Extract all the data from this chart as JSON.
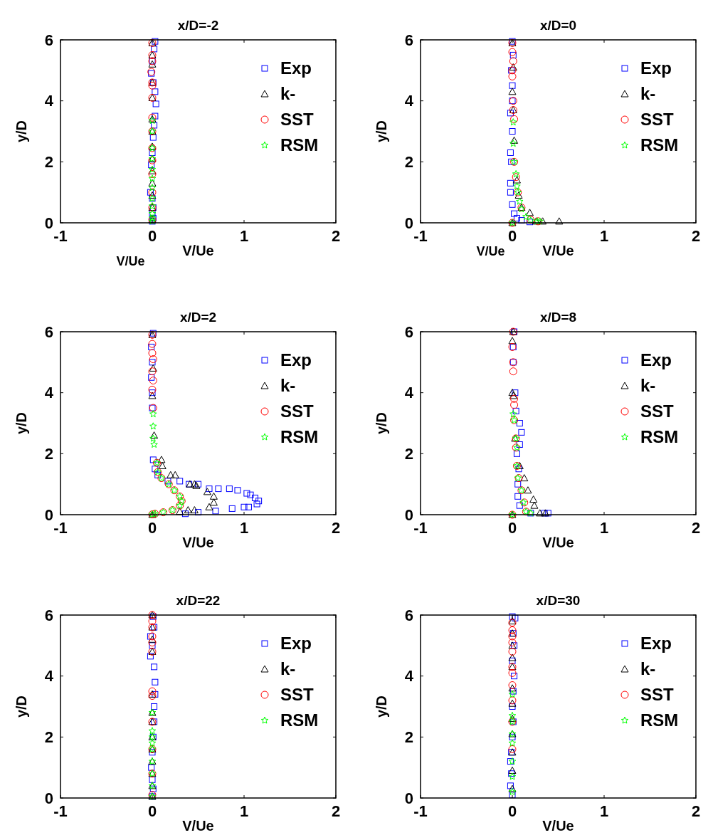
{
  "chart_data": [
    {
      "type": "scatter",
      "title": "x/D=-2",
      "xlabel": "V/Ue",
      "ylabel": "y/D",
      "annotations": [
        "V/Ue"
      ],
      "xlim": [
        -1,
        2
      ],
      "xticks": [
        -1,
        0,
        1,
        2
      ],
      "ylim": [
        0,
        6
      ],
      "yticks": [
        0,
        2,
        4,
        6
      ],
      "legend": "top right",
      "grid": false,
      "series": [
        {
          "name": "Exp",
          "color": "#0000ff",
          "marker": "square",
          "x": [
            0.03,
            0.02,
            0.0,
            -0.01,
            0.01,
            0.03,
            0.04,
            0.03,
            0.02,
            0.01,
            0.0,
            -0.01,
            -0.02,
            0.0,
            0.01,
            0.0,
            0.01,
            0.0
          ],
          "values": [
            5.95,
            5.7,
            5.3,
            4.9,
            4.6,
            4.3,
            3.9,
            3.5,
            3.2,
            2.8,
            2.3,
            1.9,
            1.0,
            0.8,
            0.5,
            0.3,
            0.15,
            0.05
          ]
        },
        {
          "name": "k-",
          "color": "#000000",
          "marker": "triangle",
          "x": [
            0.0,
            0.0,
            0.0,
            0.0,
            0.0,
            0.0,
            0.0,
            0.0,
            0.0,
            0.0,
            0.0,
            0.0,
            0.0,
            0.0
          ],
          "values": [
            5.9,
            5.5,
            5.2,
            4.6,
            4.1,
            3.4,
            3.0,
            2.5,
            2.1,
            1.7,
            1.3,
            0.9,
            0.5,
            0.1
          ]
        },
        {
          "name": "SST",
          "color": "#ff0000",
          "marker": "circle",
          "x": [
            0.0,
            0.0,
            0.0,
            -0.01,
            0.0,
            0.0,
            0.0,
            0.0,
            0.0,
            0.0,
            0.0,
            0.0,
            0.0,
            0.0,
            0.0
          ],
          "values": [
            5.9,
            5.5,
            5.3,
            4.95,
            4.6,
            4.5,
            4.1,
            3.45,
            3.0,
            2.45,
            2.05,
            1.6,
            1.0,
            0.5,
            0.1
          ]
        },
        {
          "name": "RSM",
          "color": "#00ff00",
          "marker": "star",
          "x": [
            0.0,
            0.0,
            0.0,
            0.0,
            0.0,
            0.0,
            0.0,
            0.0,
            0.0,
            0.0,
            0.0,
            0.0
          ],
          "values": [
            3.35,
            3.0,
            2.45,
            2.1,
            1.75,
            1.45,
            1.15,
            0.8,
            0.55,
            0.3,
            0.15,
            0.05
          ]
        }
      ]
    },
    {
      "type": "scatter",
      "title": "x/D=0",
      "xlabel": "V/Ue",
      "ylabel": "y/D",
      "annotations": [
        "V/Ue"
      ],
      "xlim": [
        -1,
        2
      ],
      "xticks": [
        -1,
        0,
        1,
        2
      ],
      "ylim": [
        0,
        6
      ],
      "yticks": [
        0,
        2,
        4,
        6
      ],
      "legend": "top right",
      "grid": false,
      "series": [
        {
          "name": "Exp",
          "color": "#0000ff",
          "marker": "square",
          "x": [
            0.0,
            0.01,
            -0.01,
            0.0,
            0.0,
            -0.02,
            0.0,
            -0.02,
            -0.01,
            -0.02,
            -0.02,
            0.0,
            0.02,
            0.05,
            0.1,
            0.19
          ],
          "values": [
            5.95,
            5.5,
            5.0,
            4.5,
            4.0,
            3.6,
            3.0,
            2.3,
            2.0,
            1.3,
            1.0,
            0.6,
            0.3,
            0.15,
            0.08,
            0.03
          ]
        },
        {
          "name": "k-",
          "color": "#000000",
          "marker": "triangle",
          "x": [
            0.0,
            0.01,
            0.0,
            0.01,
            0.02,
            0.05,
            0.07,
            0.1,
            0.19,
            0.26,
            0.33,
            0.51,
            0.0
          ],
          "values": [
            5.9,
            5.1,
            4.3,
            3.7,
            2.7,
            1.4,
            0.9,
            0.5,
            0.33,
            0.05,
            0.05,
            0.05,
            0.0
          ]
        },
        {
          "name": "SST",
          "color": "#ff0000",
          "marker": "circle",
          "x": [
            0.0,
            0.0,
            0.01,
            0.0,
            0.0,
            0.01,
            0.01,
            0.02,
            0.02,
            0.04,
            0.06,
            0.1,
            0.2,
            0.28,
            0.0
          ],
          "values": [
            5.9,
            5.6,
            5.3,
            5.0,
            4.8,
            4.0,
            3.7,
            3.4,
            2.0,
            1.5,
            1.0,
            0.5,
            0.1,
            0.05,
            0.0
          ]
        },
        {
          "name": "RSM",
          "color": "#00ff00",
          "marker": "star",
          "x": [
            0.01,
            0.01,
            0.02,
            0.04,
            0.05,
            0.06,
            0.08,
            0.1,
            0.15,
            0.2,
            0.27,
            0.3,
            0.0
          ],
          "values": [
            3.3,
            2.6,
            2.0,
            1.6,
            1.2,
            1.0,
            0.7,
            0.45,
            0.2,
            0.08,
            0.05,
            0.05,
            0.0
          ]
        }
      ]
    },
    {
      "type": "scatter",
      "title": "x/D=2",
      "xlabel": "V/Ue",
      "ylabel": "y/D",
      "xlim": [
        -1,
        2
      ],
      "xticks": [
        -1,
        0,
        1,
        2
      ],
      "ylim": [
        0,
        6
      ],
      "yticks": [
        0,
        2,
        4,
        6
      ],
      "legend": "top right",
      "grid": false,
      "series": [
        {
          "name": "Exp",
          "color": "#0000ff",
          "marker": "square",
          "x": [
            0.01,
            -0.01,
            0.0,
            -0.01,
            0.0,
            0.0,
            0.01,
            0.03,
            0.06,
            0.17,
            0.3,
            0.4,
            0.5,
            0.62,
            0.72,
            0.84,
            0.93,
            1.03,
            1.07,
            1.12,
            1.16,
            1.14,
            1.05,
            1.0,
            0.87,
            0.69,
            0.5,
            0.36
          ],
          "values": [
            5.95,
            5.5,
            5.0,
            4.5,
            4.0,
            3.5,
            1.8,
            1.5,
            1.3,
            1.1,
            1.1,
            1.0,
            1.0,
            0.85,
            0.85,
            0.85,
            0.8,
            0.7,
            0.65,
            0.55,
            0.45,
            0.35,
            0.25,
            0.25,
            0.2,
            0.12,
            0.08,
            0.03
          ]
        },
        {
          "name": "k-",
          "color": "#000000",
          "marker": "triangle",
          "x": [
            0.0,
            0.01,
            0.0,
            0.02,
            0.1,
            0.11,
            0.2,
            0.25,
            0.41,
            0.46,
            0.48,
            0.6,
            0.67,
            0.67,
            0.62,
            0.46,
            0.39,
            0.3,
            0.0
          ],
          "values": [
            5.9,
            4.8,
            3.9,
            2.6,
            1.8,
            1.6,
            1.3,
            1.3,
            1.0,
            1.0,
            0.95,
            0.75,
            0.6,
            0.4,
            0.25,
            0.15,
            0.15,
            0.1,
            0.0
          ]
        },
        {
          "name": "SST",
          "color": "#ff0000",
          "marker": "circle",
          "x": [
            0.0,
            0.0,
            0.0,
            0.01,
            0.0,
            0.01,
            0.0,
            0.01,
            0.05,
            0.06,
            0.1,
            0.18,
            0.24,
            0.3,
            0.32,
            0.3,
            0.22,
            0.12,
            0.03,
            0.0
          ],
          "values": [
            5.9,
            5.6,
            5.3,
            5.1,
            4.7,
            4.4,
            4.1,
            3.5,
            1.7,
            1.4,
            1.2,
            1.0,
            0.8,
            0.6,
            0.45,
            0.3,
            0.15,
            0.08,
            0.03,
            0.01
          ]
        },
        {
          "name": "RSM",
          "color": "#00ff00",
          "marker": "star",
          "x": [
            0.01,
            0.01,
            0.01,
            0.02,
            0.05,
            0.06,
            0.1,
            0.18,
            0.24,
            0.3,
            0.32,
            0.3,
            0.22,
            0.12,
            0.03,
            0.0
          ],
          "values": [
            3.3,
            2.9,
            2.5,
            2.3,
            1.7,
            1.4,
            1.2,
            1.0,
            0.8,
            0.6,
            0.45,
            0.3,
            0.15,
            0.08,
            0.03,
            0.01
          ]
        }
      ]
    },
    {
      "type": "scatter",
      "title": "x/D=8",
      "xlabel": "V/Ue",
      "ylabel": "y/D",
      "xlim": [
        -1,
        2
      ],
      "xticks": [
        -1,
        0,
        1,
        2
      ],
      "ylim": [
        0,
        6
      ],
      "yticks": [
        0,
        2,
        4,
        6
      ],
      "legend": "top right",
      "grid": false,
      "series": [
        {
          "name": "Exp",
          "color": "#0000ff",
          "marker": "square",
          "x": [
            0.02,
            0.01,
            0.01,
            0.03,
            0.04,
            0.08,
            0.1,
            0.08,
            0.05,
            0.07,
            0.06,
            0.06,
            0.08,
            0.2,
            0.35,
            0.39
          ],
          "values": [
            6.0,
            5.5,
            5.0,
            4.0,
            3.4,
            3.0,
            2.7,
            2.3,
            2.0,
            1.5,
            1.0,
            0.6,
            0.3,
            0.05,
            0.05,
            0.05
          ]
        },
        {
          "name": "k-",
          "color": "#000000",
          "marker": "triangle",
          "x": [
            0.01,
            0.0,
            0.0,
            0.01,
            0.03,
            0.08,
            0.13,
            0.17,
            0.23,
            0.24,
            0.3,
            0.36,
            0.0
          ],
          "values": [
            6.0,
            5.7,
            4.0,
            3.9,
            2.5,
            1.6,
            1.2,
            0.8,
            0.5,
            0.3,
            0.05,
            0.05,
            0.0
          ]
        },
        {
          "name": "SST",
          "color": "#ff0000",
          "marker": "circle",
          "x": [
            0.01,
            0.0,
            0.01,
            0.01,
            0.02,
            0.02,
            0.02,
            0.04,
            0.04,
            0.05,
            0.07,
            0.1,
            0.13,
            0.15,
            0.0
          ],
          "values": [
            6.0,
            5.5,
            5.0,
            4.7,
            3.8,
            3.6,
            3.1,
            2.5,
            2.2,
            1.6,
            1.2,
            0.8,
            0.4,
            0.1,
            0.0
          ]
        },
        {
          "name": "RSM",
          "color": "#00ff00",
          "marker": "star",
          "x": [
            0.01,
            0.02,
            0.04,
            0.05,
            0.05,
            0.06,
            0.1,
            0.12,
            0.15,
            0.2,
            0.0
          ],
          "values": [
            3.3,
            3.1,
            2.5,
            2.2,
            1.6,
            1.2,
            0.8,
            0.4,
            0.1,
            0.05,
            0.0
          ]
        }
      ]
    },
    {
      "type": "scatter",
      "title": "x/D=22",
      "xlabel": "V/Ue",
      "ylabel": "y/D",
      "xlim": [
        -1,
        2
      ],
      "xticks": [
        -1,
        0,
        1,
        2
      ],
      "ylim": [
        0,
        6
      ],
      "yticks": [
        0,
        2,
        4,
        6
      ],
      "legend": "top right",
      "grid": false,
      "series": [
        {
          "name": "Exp",
          "color": "#0000ff",
          "marker": "square",
          "x": [
            0.01,
            0.02,
            -0.02,
            0.0,
            -0.02,
            0.02,
            0.03,
            0.03,
            0.02,
            0.02,
            0.01,
            0.0,
            -0.01,
            0.0,
            0.01,
            0.0
          ],
          "values": [
            5.95,
            5.6,
            5.3,
            5.0,
            4.65,
            4.3,
            3.8,
            3.4,
            3.0,
            2.5,
            2.0,
            1.5,
            1.0,
            0.6,
            0.3,
            0.05
          ]
        },
        {
          "name": "k-",
          "color": "#000000",
          "marker": "triangle",
          "x": [
            0.0,
            0.0,
            0.0,
            0.0,
            0.0,
            0.0,
            0.0,
            0.0,
            0.0,
            0.0,
            0.0,
            0.0,
            0.0
          ],
          "values": [
            6.0,
            5.6,
            5.2,
            4.8,
            3.4,
            2.8,
            2.5,
            2.0,
            1.6,
            1.2,
            0.8,
            0.4,
            0.05
          ]
        },
        {
          "name": "SST",
          "color": "#ff0000",
          "marker": "circle",
          "x": [
            0.0,
            0.0,
            0.0,
            0.0,
            0.0,
            0.0,
            0.0,
            0.0,
            0.0,
            0.0,
            0.0,
            0.0
          ],
          "values": [
            6.0,
            5.8,
            5.6,
            5.3,
            5.1,
            4.8,
            3.5,
            3.35,
            2.5,
            1.6,
            0.8,
            0.1
          ]
        },
        {
          "name": "RSM",
          "color": "#00ff00",
          "marker": "star",
          "x": [
            0.0,
            0.0,
            0.0,
            0.0,
            0.0,
            0.0,
            0.0,
            0.0,
            0.0
          ],
          "values": [
            2.8,
            2.2,
            2.0,
            1.8,
            1.6,
            1.2,
            0.8,
            0.4,
            0.05
          ]
        }
      ]
    },
    {
      "type": "scatter",
      "title": "x/D=30",
      "xlabel": "V/Ue",
      "ylabel": "y/D",
      "xlim": [
        -1,
        2
      ],
      "xticks": [
        -1,
        0,
        1,
        2
      ],
      "ylim": [
        0,
        6
      ],
      "yticks": [
        0,
        2,
        4,
        6
      ],
      "legend": "top right",
      "grid": false,
      "series": [
        {
          "name": "Exp",
          "color": "#0000ff",
          "marker": "square",
          "x": [
            0.0,
            0.03,
            0.01,
            0.02,
            0.0,
            0.02,
            0.01,
            0.0,
            0.01,
            0.0,
            -0.01,
            -0.02,
            -0.01,
            -0.02,
            0.0
          ],
          "values": [
            5.95,
            5.9,
            5.4,
            5.0,
            4.5,
            4.0,
            3.5,
            3.0,
            2.5,
            2.0,
            1.5,
            1.2,
            0.8,
            0.4,
            0.1
          ]
        },
        {
          "name": "k-",
          "color": "#000000",
          "marker": "triangle",
          "x": [
            0.0,
            0.0,
            0.0,
            0.0,
            0.0,
            0.0,
            0.0,
            0.0,
            0.0,
            0.0,
            0.0,
            0.0
          ],
          "values": [
            5.8,
            5.4,
            5.0,
            4.6,
            4.3,
            3.6,
            3.1,
            2.6,
            2.1,
            1.5,
            0.9,
            0.3
          ]
        },
        {
          "name": "SST",
          "color": "#ff0000",
          "marker": "circle",
          "x": [
            0.0,
            0.0,
            0.0,
            0.0,
            0.0,
            0.0,
            0.0,
            0.0,
            0.0,
            0.0,
            0.0
          ],
          "values": [
            5.75,
            5.5,
            5.3,
            5.1,
            4.8,
            4.3,
            4.1,
            3.7,
            3.2,
            2.5,
            1.6
          ]
        },
        {
          "name": "RSM",
          "color": "#00ff00",
          "marker": "star",
          "x": [
            0.0,
            0.0,
            0.0,
            0.0,
            0.0,
            0.0,
            0.0,
            0.0
          ],
          "values": [
            3.4,
            2.7,
            2.5,
            2.1,
            1.8,
            1.2,
            0.7,
            0.2
          ]
        }
      ]
    }
  ]
}
